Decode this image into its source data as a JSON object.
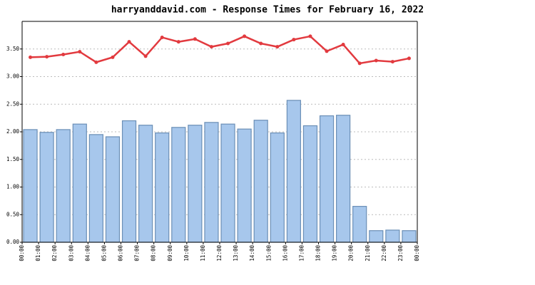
{
  "chart_data": {
    "type": "bar_line",
    "title": "harryanddavid.com - Response Times for February 16, 2022",
    "x_tick_labels": [
      "00:00",
      "01:00",
      "02:00",
      "03:00",
      "04:00",
      "05:00",
      "06:00",
      "07:00",
      "08:00",
      "09:00",
      "10:00",
      "11:00",
      "12:00",
      "13:00",
      "14:00",
      "15:00",
      "16:00",
      "17:00",
      "18:00",
      "19:00",
      "20:00",
      "21:00",
      "22:00",
      "23:00",
      "00:00"
    ],
    "series": [
      {
        "type": "bar",
        "color": "#a7c7ec",
        "edge_color": "#6b8fb6",
        "values": [
          2.04,
          1.99,
          2.04,
          2.14,
          1.95,
          1.91,
          2.2,
          2.12,
          1.98,
          2.08,
          2.12,
          2.17,
          2.14,
          2.05,
          2.21,
          1.98,
          2.57,
          2.11,
          2.29,
          2.3,
          0.65,
          0.21,
          0.22,
          0.21
        ]
      },
      {
        "type": "line",
        "color": "#e23a3f",
        "values": [
          3.35,
          3.36,
          3.4,
          3.45,
          3.26,
          3.35,
          3.63,
          3.37,
          3.71,
          3.63,
          3.68,
          3.54,
          3.6,
          3.73,
          3.6,
          3.54,
          3.67,
          3.73,
          3.46,
          3.58,
          3.24,
          3.29,
          3.27,
          3.33
        ]
      }
    ],
    "ylim": [
      0,
      4.0
    ],
    "yticks": [
      {
        "value": 0,
        "label": "0.00"
      },
      {
        "value": 0.5,
        "label": "0.50"
      },
      {
        "value": 1,
        "label": "1.00"
      },
      {
        "value": 1.5,
        "label": "1.50"
      },
      {
        "value": 2,
        "label": "2.00"
      },
      {
        "value": 2.5,
        "label": "2.50"
      },
      {
        "value": 3,
        "label": "3.00"
      },
      {
        "value": 3.5,
        "label": "3.50"
      }
    ],
    "grid": true
  }
}
